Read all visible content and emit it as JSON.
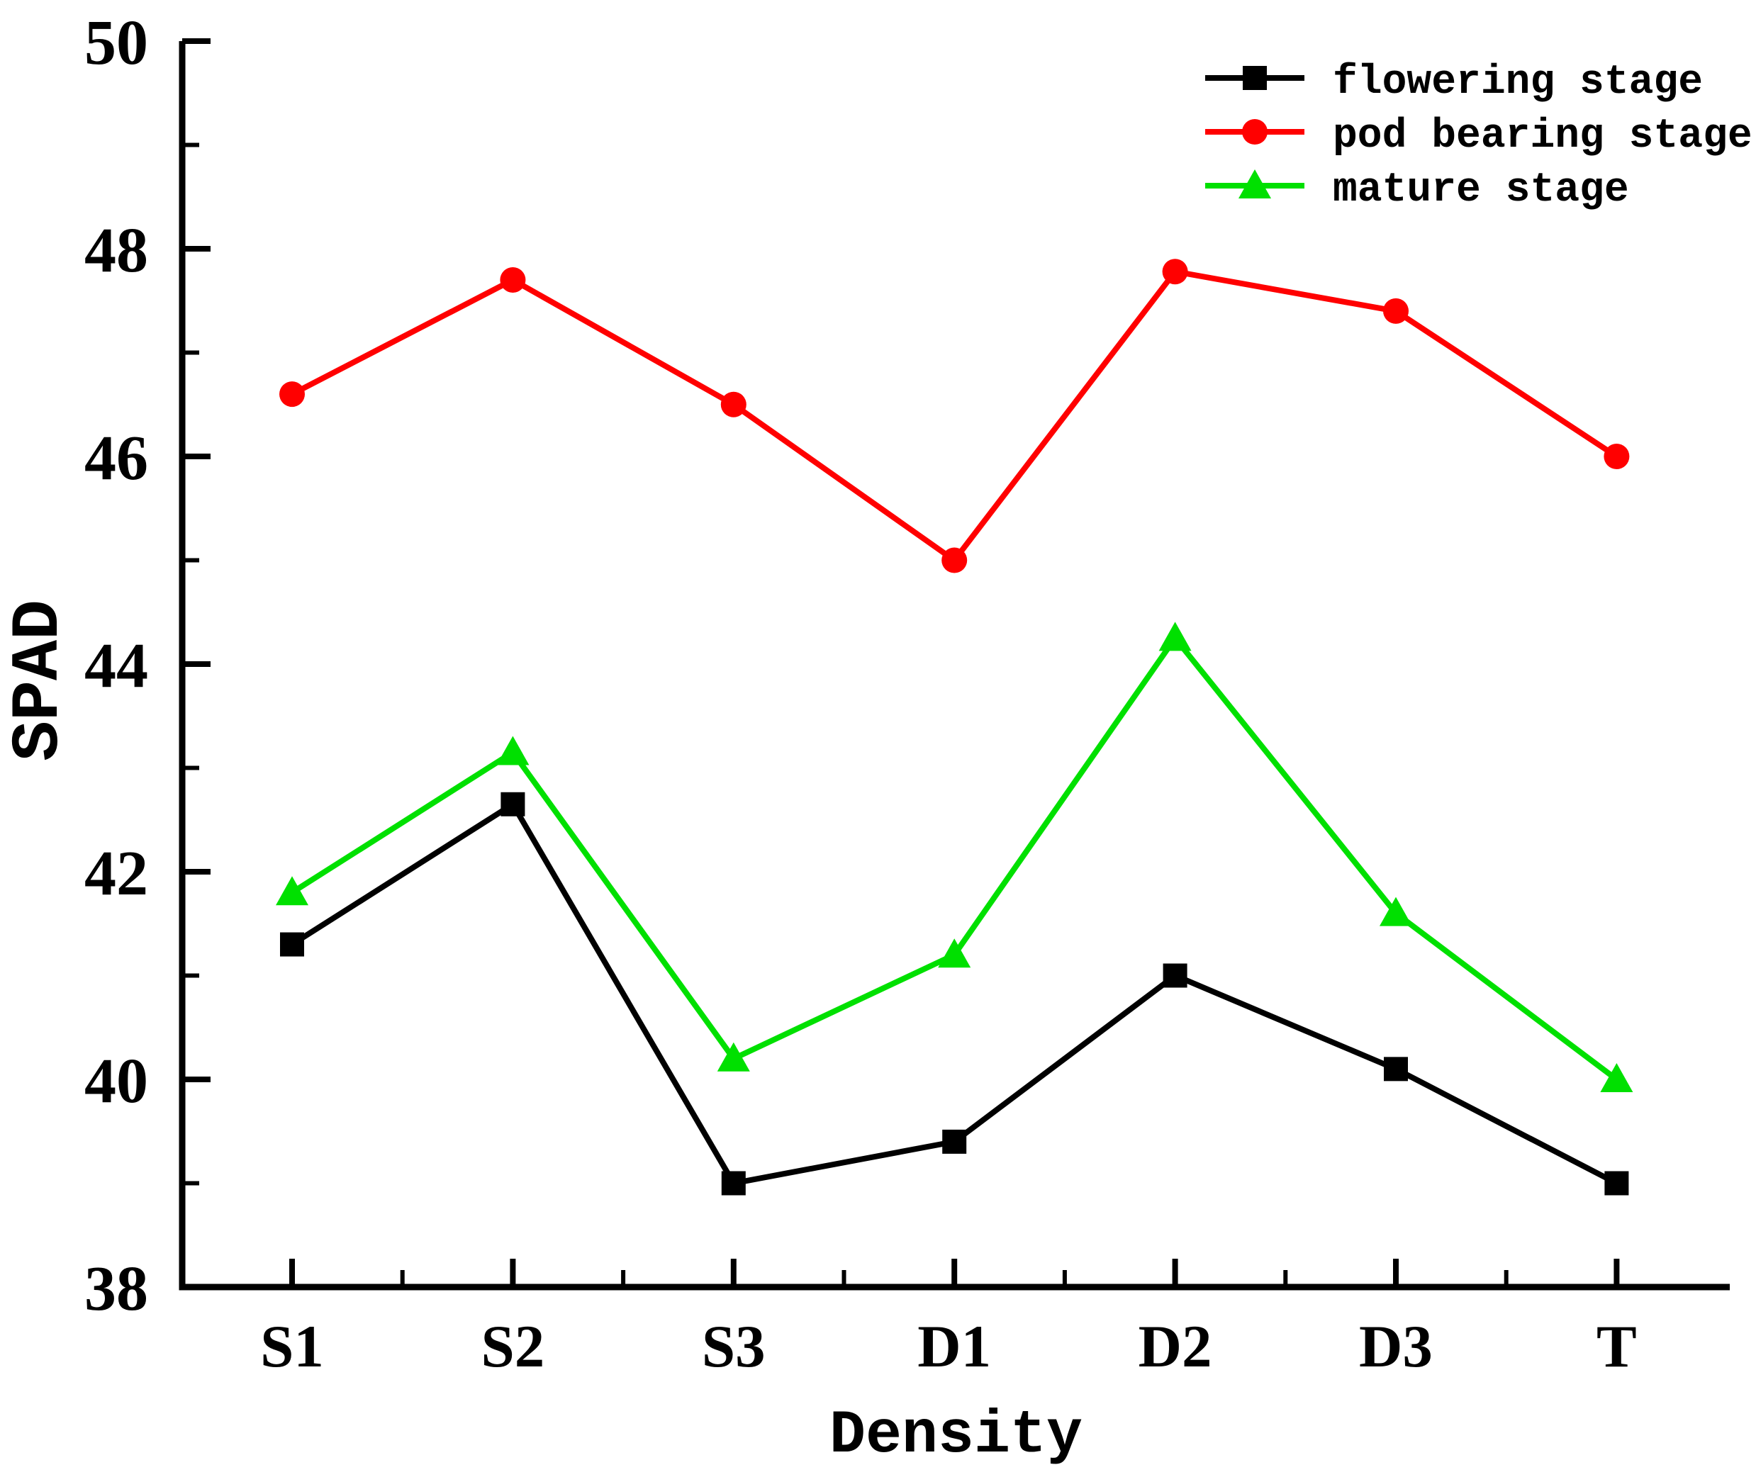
{
  "chart_data": {
    "type": "line",
    "title": "",
    "xlabel": "Density",
    "ylabel": "SPAD",
    "categories": [
      "S1",
      "S2",
      "S3",
      "D1",
      "D2",
      "D3",
      "T"
    ],
    "ylim": [
      38,
      50
    ],
    "yticks_major": [
      38,
      40,
      42,
      44,
      46,
      48,
      50
    ],
    "yticks_minor": [
      39,
      41,
      43,
      45,
      47,
      49
    ],
    "grid": false,
    "legend_position": "top-right",
    "axis_color": "#000000",
    "background_color": "#ffffff",
    "series": [
      {
        "name": "flowering stage",
        "color": "#000000",
        "marker": "square",
        "values": [
          41.3,
          42.65,
          39.0,
          39.4,
          41.0,
          40.1,
          39.0
        ]
      },
      {
        "name": "pod bearing stage",
        "color": "#ff0000",
        "marker": "circle",
        "values": [
          46.6,
          47.7,
          46.5,
          45.0,
          47.78,
          47.4,
          46.0
        ]
      },
      {
        "name": "mature stage",
        "color": "#00e000",
        "marker": "triangle-up",
        "values": [
          41.8,
          43.15,
          40.2,
          41.2,
          44.25,
          41.6,
          40.0
        ]
      }
    ]
  }
}
